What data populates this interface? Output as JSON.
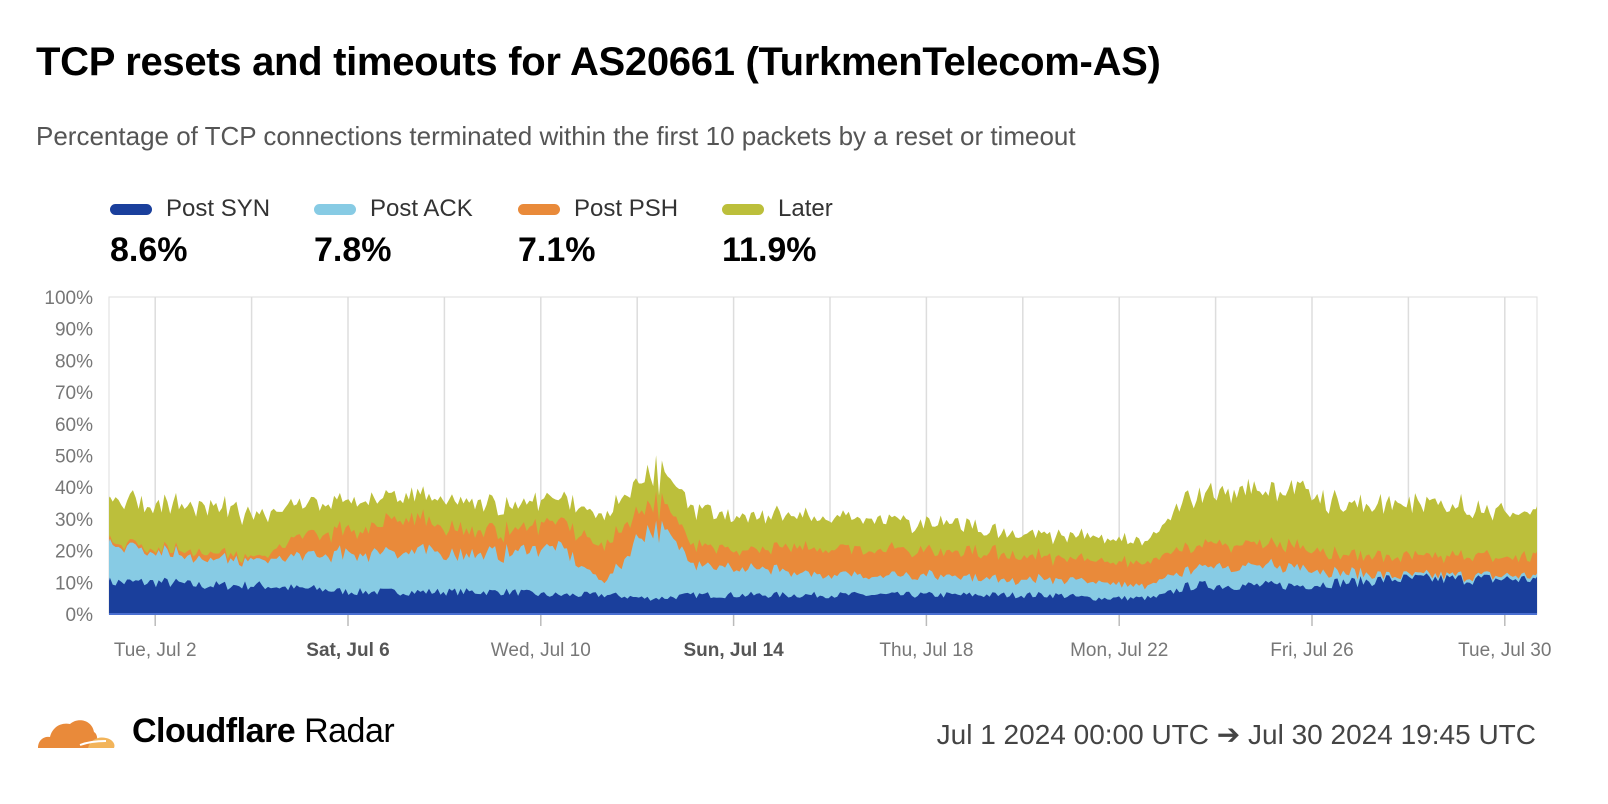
{
  "title": "TCP resets and timeouts for AS20661 (TurkmenTelecom-AS)",
  "subtitle": "Percentage of TCP connections terminated within the first 10 packets by a reset or timeout",
  "legend": [
    {
      "name": "Post SYN",
      "value": "8.6%",
      "color": "#1a3f9c"
    },
    {
      "name": "Post ACK",
      "value": "7.8%",
      "color": "#87cbe4"
    },
    {
      "name": "Post PSH",
      "value": "7.1%",
      "color": "#e98a3a"
    },
    {
      "name": "Later",
      "value": "11.9%",
      "color": "#bcbf3b"
    }
  ],
  "footer": {
    "brand_bold": "Cloudflare",
    "brand_light": "Radar",
    "range": "Jul 1 2024 00:00 UTC ➔ Jul 30 2024 19:45 UTC"
  },
  "chart_data": {
    "type": "area",
    "stacked": true,
    "x": [
      "2024-07-01",
      "2024-07-02",
      "2024-07-03",
      "2024-07-04",
      "2024-07-05",
      "2024-07-06",
      "2024-07-07",
      "2024-07-08",
      "2024-07-09",
      "2024-07-10",
      "2024-07-11",
      "2024-07-12",
      "2024-07-13",
      "2024-07-14",
      "2024-07-15",
      "2024-07-16",
      "2024-07-17",
      "2024-07-18",
      "2024-07-19",
      "2024-07-20",
      "2024-07-21",
      "2024-07-22",
      "2024-07-23",
      "2024-07-24",
      "2024-07-25",
      "2024-07-26",
      "2024-07-27",
      "2024-07-28",
      "2024-07-29",
      "2024-07-30"
    ],
    "series": [
      {
        "name": "Post SYN",
        "color": "#1a3f9c",
        "values": [
          10,
          10,
          9,
          9,
          8,
          7,
          7,
          7,
          7,
          6,
          6,
          5,
          6,
          6,
          6,
          6,
          6,
          6,
          6,
          6,
          5,
          5,
          9,
          9,
          9,
          10,
          11,
          11,
          11,
          11
        ]
      },
      {
        "name": "Post ACK",
        "color": "#87cbe4",
        "values": [
          12,
          10,
          8,
          8,
          10,
          12,
          13,
          12,
          12,
          15,
          5,
          22,
          10,
          8,
          7,
          6,
          6,
          6,
          5,
          5,
          5,
          4,
          6,
          6,
          6,
          3,
          1,
          1,
          1,
          1
        ]
      },
      {
        "name": "Post PSH",
        "color": "#e98a3a",
        "values": [
          1,
          1,
          2,
          1,
          6,
          8,
          10,
          8,
          7,
          8,
          11,
          8,
          6,
          6,
          8,
          8,
          8,
          8,
          8,
          7,
          7,
          7,
          7,
          7,
          7,
          6,
          6,
          6,
          6,
          6
        ]
      },
      {
        "name": "Later",
        "color": "#bcbf3b",
        "values": [
          14,
          14,
          14,
          14,
          10,
          9,
          7,
          9,
          8,
          7,
          9,
          10,
          11,
          10,
          10,
          10,
          9,
          9,
          7,
          7,
          7,
          7,
          16,
          17,
          18,
          16,
          16,
          16,
          15,
          15
        ]
      }
    ],
    "ylim": [
      0,
      100
    ],
    "yticks": [
      "0%",
      "10%",
      "20%",
      "30%",
      "40%",
      "50%",
      "60%",
      "70%",
      "80%",
      "90%",
      "100%"
    ],
    "xticks": [
      {
        "label": "Tue, Jul 2",
        "day": 2,
        "bold": false
      },
      {
        "label": "Sat, Jul 6",
        "day": 6,
        "bold": true
      },
      {
        "label": "Wed, Jul 10",
        "day": 10,
        "bold": false
      },
      {
        "label": "Sun, Jul 14",
        "day": 14,
        "bold": true
      },
      {
        "label": "Thu, Jul 18",
        "day": 18,
        "bold": false
      },
      {
        "label": "Mon, Jul 22",
        "day": 22,
        "bold": false
      },
      {
        "label": "Fri, Jul 26",
        "day": 26,
        "bold": false
      },
      {
        "label": "Tue, Jul 30",
        "day": 30,
        "bold": false
      }
    ],
    "grid": true,
    "legend_position": "top-left"
  }
}
